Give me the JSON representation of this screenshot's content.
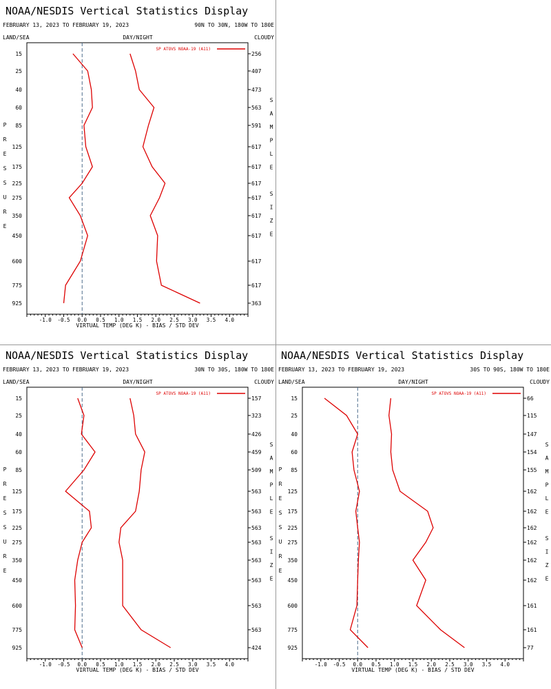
{
  "title": "NOAA/NESDIS Vertical Statistics Display",
  "date_range": "FEBRUARY 13, 2023 TO FEBRUARY 19, 2023",
  "labels": {
    "land_sea": "LAND/SEA",
    "day_night": "DAY/NIGHT",
    "cloudy": "CLOUDY",
    "pressure": "PRESSURE",
    "sample_size": "SAMPLE SIZE",
    "legend": "SP ATOVS NOAA-19 (A11)",
    "xlabel": "VIRTUAL TEMP (DEG K) - BIAS / STD DEV"
  },
  "colors": {
    "series": "#dd0000",
    "axis": "#000000",
    "zero_line": "#4a6a8a"
  },
  "chart_data": [
    {
      "type": "line",
      "region": "90N TO 30N, 180W TO 180E",
      "y_ticks": [
        "15",
        "25",
        "40",
        "60",
        "85",
        "125",
        "175",
        "225",
        "275",
        "350",
        "450",
        "600",
        "775",
        "925"
      ],
      "x_ticks": [
        "-1.0",
        "-0.5",
        "0.0",
        "0.5",
        "1.0",
        "1.5",
        "2.0",
        "2.5",
        "3.0",
        "3.5",
        "4.0"
      ],
      "xlim": [
        -1.5,
        4.5
      ],
      "ylabel": "PRESSURE",
      "xlabel": "VIRTUAL TEMP (DEG K) - BIAS / STD DEV",
      "series": [
        {
          "name": "BIAS",
          "x": [
            -0.25,
            0.15,
            0.25,
            0.28,
            0.05,
            0.1,
            0.28,
            0.0,
            -0.35,
            -0.05,
            0.15,
            -0.05,
            -0.45,
            -0.5
          ]
        },
        {
          "name": "STD DEV",
          "x": [
            1.3,
            1.45,
            1.55,
            1.95,
            1.8,
            1.65,
            1.9,
            2.25,
            2.1,
            1.85,
            2.05,
            2.02,
            2.15,
            3.2
          ]
        }
      ],
      "sample_size": [
        "256",
        "407",
        "473",
        "563",
        "591",
        "617",
        "617",
        "617",
        "617",
        "617",
        "617",
        "617",
        "617",
        "363"
      ]
    },
    {
      "type": "line",
      "region": "30N TO 30S, 180W TO 180E",
      "y_ticks": [
        "15",
        "25",
        "40",
        "60",
        "85",
        "125",
        "175",
        "225",
        "275",
        "350",
        "450",
        "600",
        "775",
        "925"
      ],
      "x_ticks": [
        "-1.0",
        "-0.5",
        "0.0",
        "0.5",
        "1.0",
        "1.5",
        "2.0",
        "2.5",
        "3.0",
        "3.5",
        "4.0"
      ],
      "xlim": [
        -1.5,
        4.5
      ],
      "ylabel": "PRESSURE",
      "xlabel": "VIRTUAL TEMP (DEG K) - BIAS / STD DEV",
      "series": [
        {
          "name": "BIAS",
          "x": [
            -0.12,
            0.05,
            -0.02,
            0.35,
            0.05,
            -0.45,
            0.2,
            0.25,
            0.0,
            -0.12,
            -0.2,
            -0.18,
            -0.2,
            0.0
          ]
        },
        {
          "name": "STD DEV",
          "x": [
            1.3,
            1.4,
            1.45,
            1.7,
            1.6,
            1.55,
            1.45,
            1.05,
            1.0,
            1.1,
            1.1,
            1.1,
            1.6,
            2.4
          ]
        }
      ],
      "sample_size": [
        "157",
        "323",
        "426",
        "459",
        "509",
        "563",
        "563",
        "563",
        "563",
        "563",
        "563",
        "563",
        "563",
        "424"
      ]
    },
    {
      "type": "line",
      "region": "30S TO 90S, 180W TO 180E",
      "y_ticks": [
        "15",
        "25",
        "40",
        "60",
        "85",
        "125",
        "175",
        "225",
        "275",
        "350",
        "450",
        "600",
        "775",
        "925"
      ],
      "x_ticks": [
        "-1.0",
        "-0.5",
        "0.0",
        "0.5",
        "1.0",
        "1.5",
        "2.0",
        "2.5",
        "3.0",
        "3.5",
        "4.0"
      ],
      "xlim": [
        -1.5,
        4.5
      ],
      "ylabel": "PRESSURE",
      "xlabel": "VIRTUAL TEMP (DEG K) - BIAS / STD DEV",
      "series": [
        {
          "name": "BIAS",
          "x": [
            -0.9,
            -0.3,
            0.0,
            -0.15,
            -0.1,
            0.05,
            -0.05,
            0.0,
            0.05,
            0.02,
            0.0,
            -0.02,
            -0.2,
            0.28
          ]
        },
        {
          "name": "STD DEV",
          "x": [
            0.9,
            0.85,
            0.92,
            0.9,
            0.95,
            1.15,
            1.9,
            2.05,
            1.85,
            1.5,
            1.85,
            1.6,
            2.25,
            2.9
          ]
        }
      ],
      "sample_size": [
        "66",
        "115",
        "147",
        "154",
        "155",
        "162",
        "162",
        "162",
        "162",
        "162",
        "162",
        "161",
        "161",
        "77"
      ]
    }
  ]
}
